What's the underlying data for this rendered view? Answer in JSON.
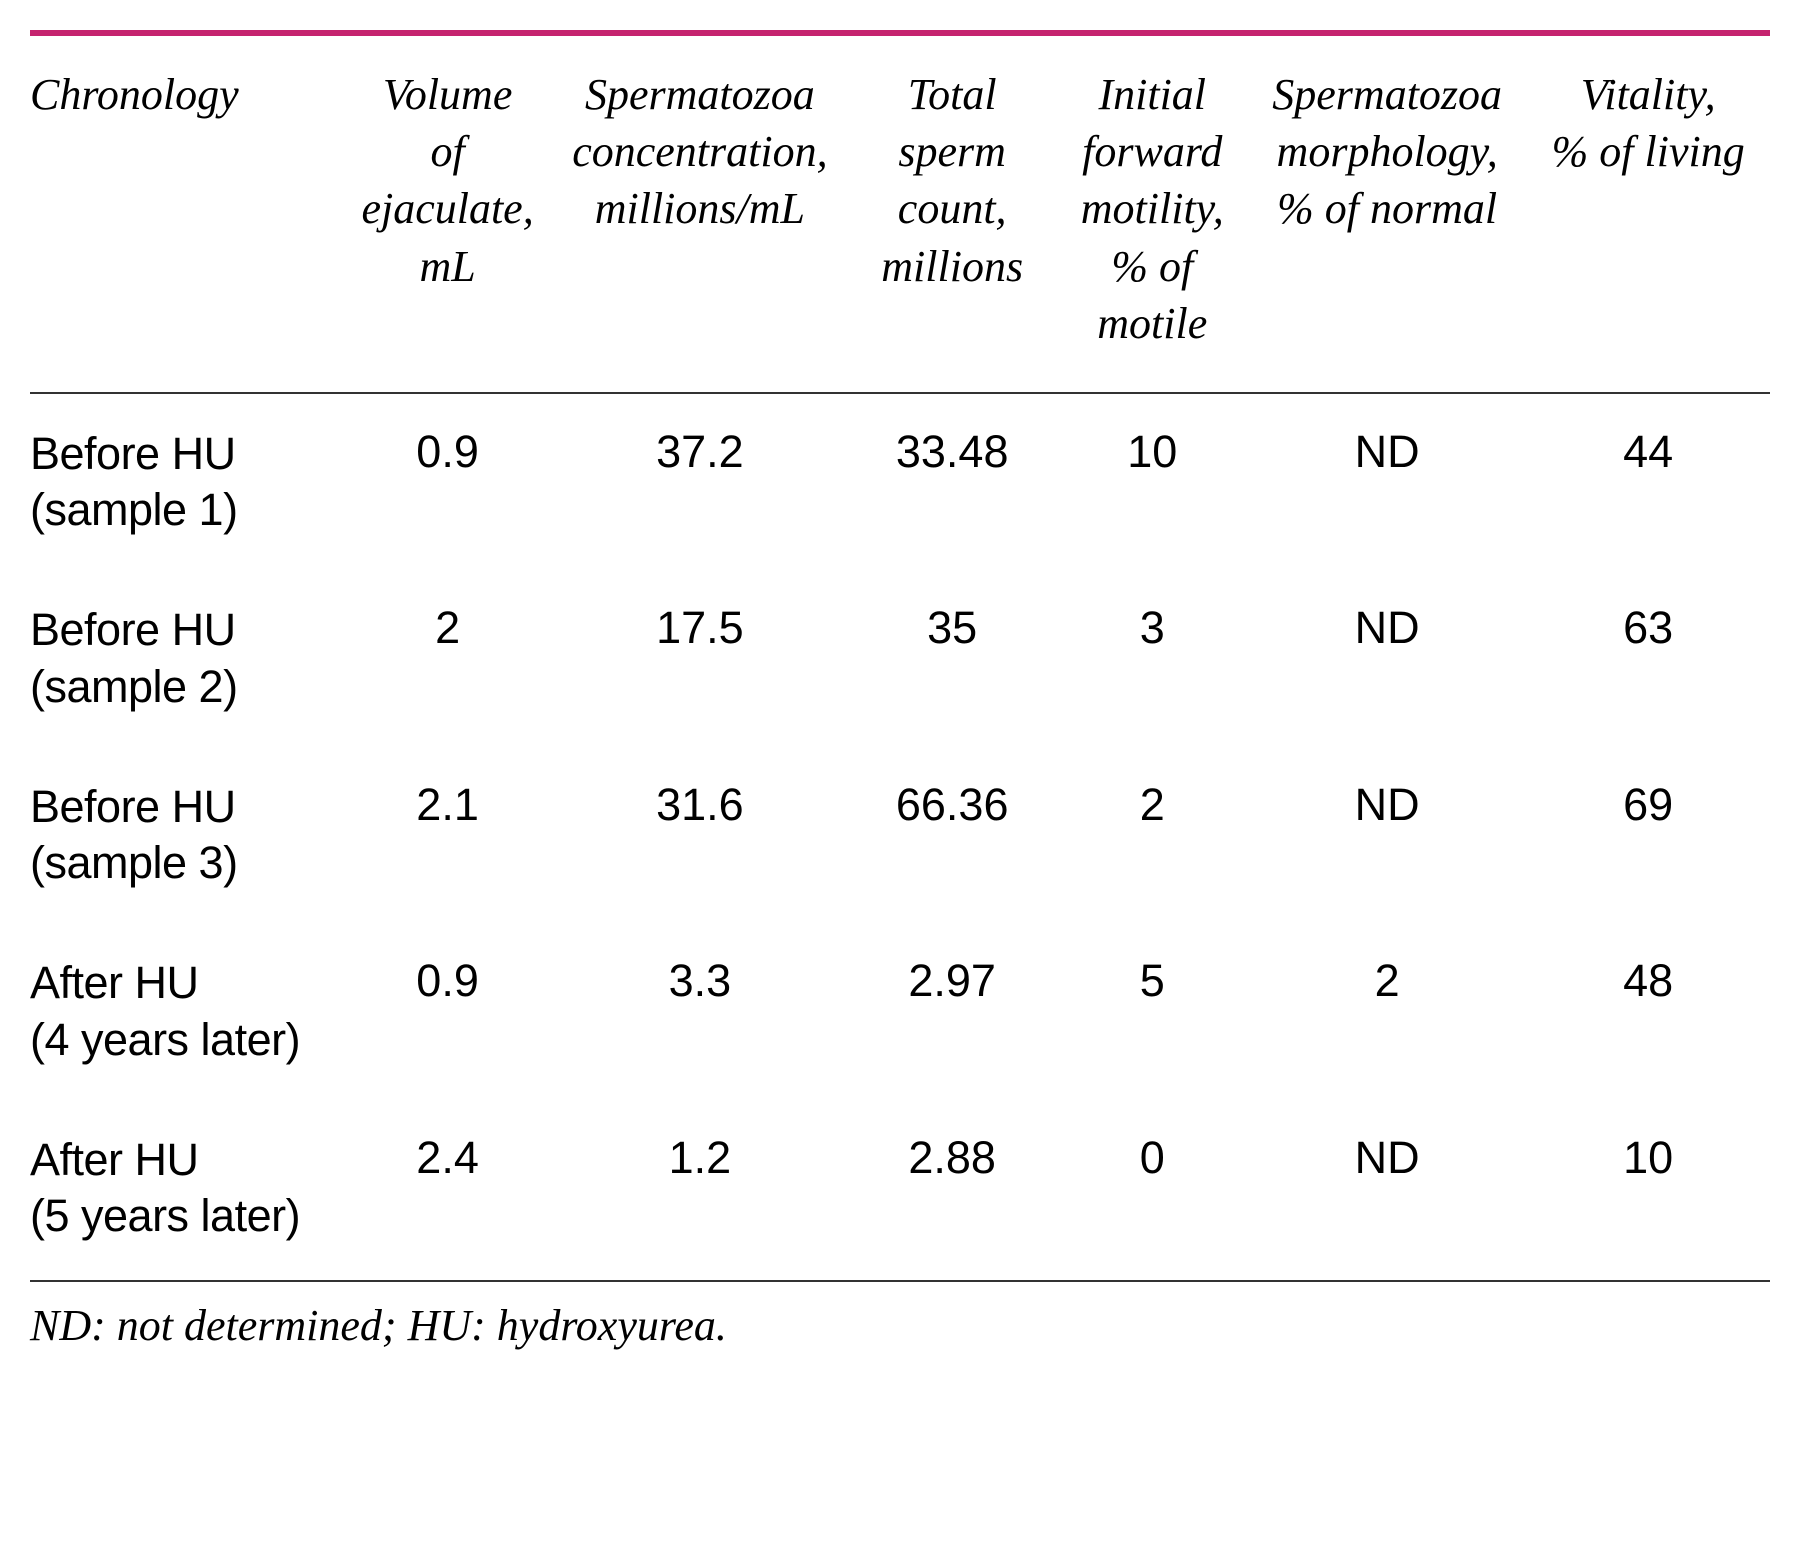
{
  "table": {
    "border_top_color": "#c5236f",
    "border_top_width": "6px",
    "rule_color": "#333333",
    "background_color": "#ffffff",
    "header_font_style": "italic",
    "header_font_size": 44,
    "body_font_size": 45,
    "columns": [
      {
        "key": "chronology",
        "label": "Chronology",
        "align": "left"
      },
      {
        "key": "volume",
        "label": "Volume of ejaculate, mL",
        "align": "center"
      },
      {
        "key": "concentration",
        "label": "Spermatozoa concentration, millions/mL",
        "align": "center"
      },
      {
        "key": "total",
        "label": "Total sperm count, millions",
        "align": "center"
      },
      {
        "key": "motility",
        "label": "Initial forward motility, % of motile",
        "align": "center"
      },
      {
        "key": "morphology",
        "label": "Spermatozoa morphology, % of normal",
        "align": "center"
      },
      {
        "key": "vitality",
        "label": "Vitality, % of living",
        "align": "center"
      }
    ],
    "header_lines": {
      "chronology": [
        "Chronology"
      ],
      "volume": [
        "Volume",
        "of",
        "ejaculate,",
        "mL"
      ],
      "concentration": [
        "Spermatozoa",
        "concentration,",
        "millions/mL"
      ],
      "total": [
        "Total",
        "sperm",
        "count,",
        "millions"
      ],
      "motility": [
        "Initial",
        "forward",
        "motility,",
        "% of",
        "motile"
      ],
      "morphology": [
        "Spermatozoa",
        "morphology,",
        "% of normal"
      ],
      "vitality": [
        "Vitality,",
        "% of living"
      ]
    },
    "rows": [
      {
        "chronology_line1": "Before HU",
        "chronology_line2": "(sample 1)",
        "volume": "0.9",
        "concentration": "37.2",
        "total": "33.48",
        "motility": "10",
        "morphology": "ND",
        "vitality": "44"
      },
      {
        "chronology_line1": "Before HU",
        "chronology_line2": "(sample 2)",
        "volume": "2",
        "concentration": "17.5",
        "total": "35",
        "motility": "3",
        "morphology": "ND",
        "vitality": "63"
      },
      {
        "chronology_line1": "Before HU",
        "chronology_line2": "(sample 3)",
        "volume": "2.1",
        "concentration": "31.6",
        "total": "66.36",
        "motility": "2",
        "morphology": "ND",
        "vitality": "69"
      },
      {
        "chronology_line1": "After HU",
        "chronology_line2": "(4 years later)",
        "volume": "0.9",
        "concentration": "3.3",
        "total": "2.97",
        "motility": "5",
        "morphology": "2",
        "vitality": "48"
      },
      {
        "chronology_line1": "After HU",
        "chronology_line2": "(5 years later)",
        "volume": "2.4",
        "concentration": "1.2",
        "total": "2.88",
        "motility": "0",
        "morphology": "ND",
        "vitality": "10"
      }
    ],
    "footnote": "ND: not determined; HU: hydroxyurea.",
    "footnote_font_style": "italic",
    "footnote_font_size": 44
  }
}
